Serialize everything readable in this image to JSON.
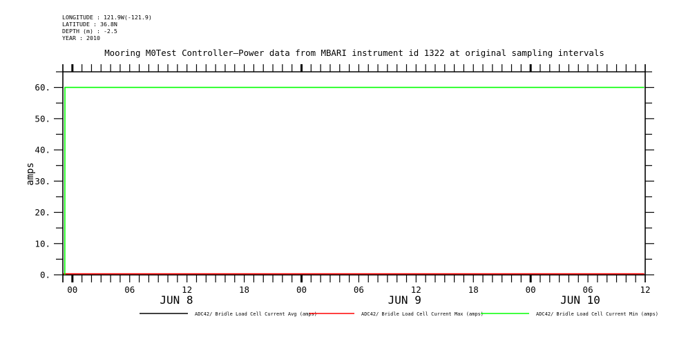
{
  "meta_block": {
    "lines": [
      "LONGITUDE : 121.9W(-121.9)",
      "LATITUDE : 36.8N",
      "DEPTH (m) : -2.5",
      "YEAR : 2010"
    ]
  },
  "title": "Mooring M0Test Controller—Power data from MBARI instrument id 1322 at original sampling intervals",
  "chart_data": {
    "type": "line",
    "title": "Mooring M0Test Controller—Power data from MBARI instrument id 1322 at original sampling intervals",
    "xlabel": "",
    "ylabel": "amps",
    "ylim": [
      0,
      65
    ],
    "grid": false,
    "legend_position": "bottom",
    "y_minor_step": 5,
    "y_major_ticks": [
      {
        "v": 0,
        "label": "0."
      },
      {
        "v": 10,
        "label": "10."
      },
      {
        "v": 20,
        "label": "20."
      },
      {
        "v": 30,
        "label": "30."
      },
      {
        "v": 40,
        "label": "40."
      },
      {
        "v": 50,
        "label": "50."
      },
      {
        "v": 60,
        "label": "60."
      }
    ],
    "x_axis": {
      "description": "hours relative to JUN 8 00:00, axis spans 23:00 JUN 7 to 12:00 JUN 10, minor tick every hour",
      "hmin": -1,
      "hmax": 60,
      "minor_step_hours": 1,
      "bold_tick_hours": [
        0,
        24,
        48
      ],
      "hour_labels": [
        {
          "h": 0,
          "label": "00"
        },
        {
          "h": 6,
          "label": "06"
        },
        {
          "h": 12,
          "label": "12"
        },
        {
          "h": 18,
          "label": "18"
        },
        {
          "h": 24,
          "label": "00"
        },
        {
          "h": 30,
          "label": "06"
        },
        {
          "h": 36,
          "label": "12"
        },
        {
          "h": 42,
          "label": "18"
        },
        {
          "h": 48,
          "label": "00"
        },
        {
          "h": 54,
          "label": "06"
        },
        {
          "h": 60,
          "label": "12"
        }
      ],
      "day_labels": [
        {
          "h": 10.9,
          "label": "JUN  8"
        },
        {
          "h": 34.8,
          "label": "JUN  9"
        },
        {
          "h": 53.2,
          "label": "JUN 10"
        }
      ]
    },
    "series": [
      {
        "name": "ADC42/ Bridle Load Cell Current Avg (amps)",
        "color": "#000000",
        "points_h_v": [
          [
            -0.95,
            0
          ],
          [
            59.9,
            0
          ]
        ]
      },
      {
        "name": "ADC42/ Bridle Load Cell Current Max (amps)",
        "color": "#ff0000",
        "points_h_v": [
          [
            -0.95,
            0.3
          ],
          [
            59.9,
            0.3
          ]
        ]
      },
      {
        "name": "ADC42/ Bridle Load Cell Current Min (amps)",
        "color": "#00ff00",
        "points_h_v": [
          [
            -0.8,
            0
          ],
          [
            -0.78,
            60
          ],
          [
            59.9,
            60
          ]
        ]
      }
    ]
  }
}
